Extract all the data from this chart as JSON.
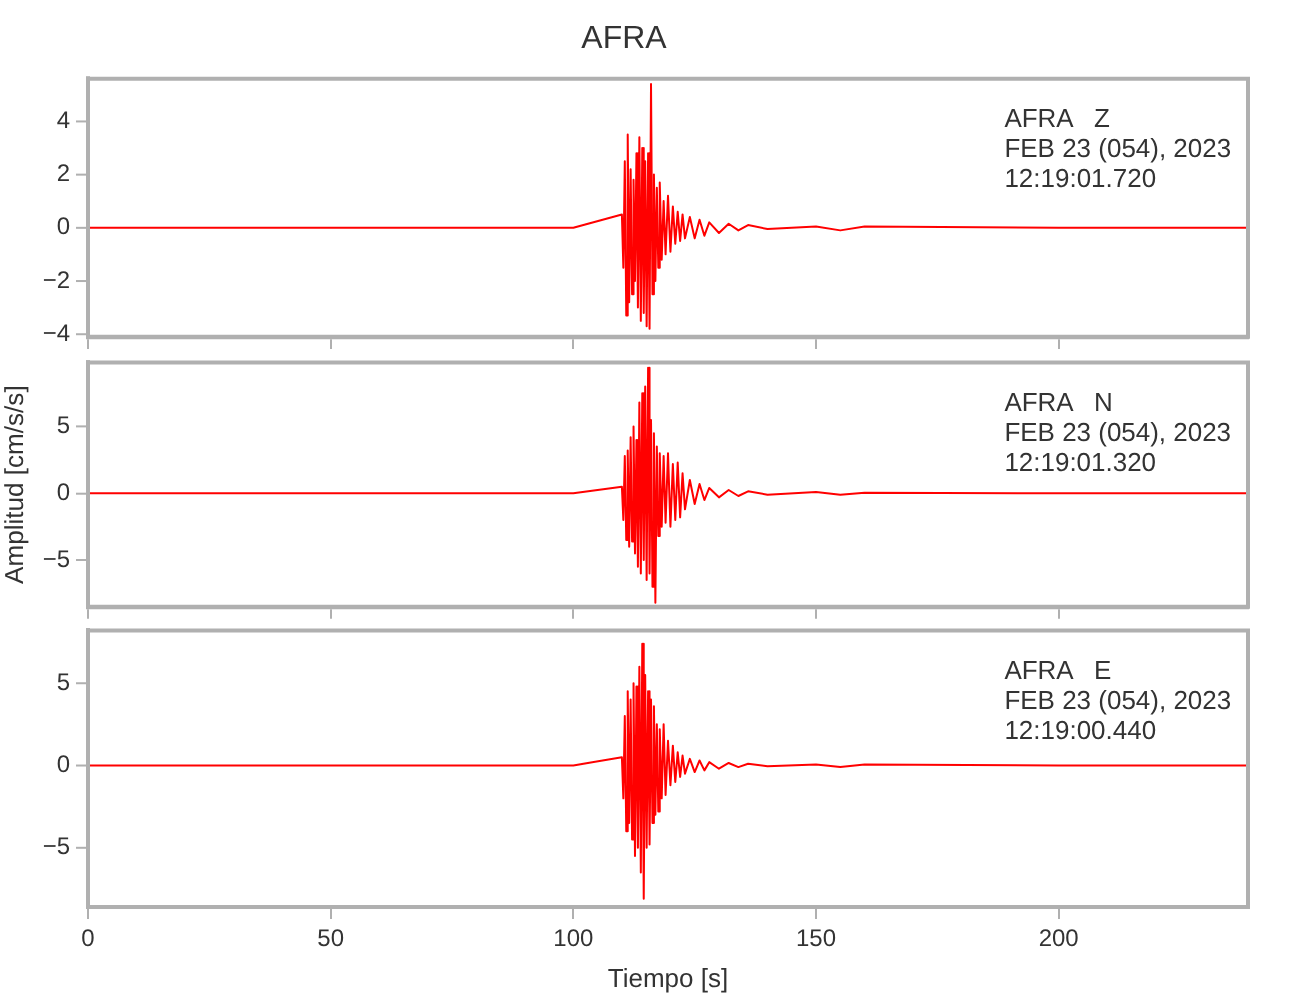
{
  "chart_data": [
    {
      "type": "line",
      "title": "AFRA",
      "annotations": [
        "AFRA   Z",
        "FEB 23 (054), 2023",
        "12:19:01.720"
      ],
      "xlim": [
        0,
        239
      ],
      "xticks": [
        0,
        50,
        100,
        150,
        200
      ],
      "ylim": [
        -4.1,
        5.6
      ],
      "yticks": [
        -4,
        -2,
        0,
        2,
        4
      ],
      "tick_labels": "y",
      "line_style": "solid",
      "series": [
        {
          "color": "#ff0000",
          "x": [
            0,
            50,
            100,
            110,
            110.3,
            110.6,
            110.9,
            111.2,
            111.5,
            111.8,
            112.1,
            112.4,
            112.7,
            113,
            113.3,
            113.6,
            113.9,
            114.2,
            114.5,
            114.8,
            115.1,
            115.4,
            115.7,
            116,
            116.3,
            116.6,
            116.9,
            117.2,
            117.5,
            117.8,
            118.2,
            118.6,
            119,
            119.5,
            120,
            120.5,
            121,
            121.5,
            122,
            122.5,
            123,
            124,
            125,
            126,
            127,
            128,
            130,
            132,
            134,
            136,
            140,
            150,
            155,
            160,
            200,
            239
          ],
          "values": [
            0,
            0,
            0,
            0.5,
            -1.5,
            2.5,
            -3.3,
            3.5,
            -2.8,
            2.2,
            -2.5,
            1.8,
            -2,
            2.8,
            -3,
            3.4,
            -3.5,
            3,
            -3.2,
            2.5,
            -3.7,
            2.8,
            -3.8,
            5.4,
            -2.5,
            2,
            -2,
            1.5,
            -1.5,
            1.7,
            -1.2,
            1,
            -1,
            1.2,
            -0.9,
            0.8,
            -0.6,
            0.6,
            -0.5,
            0.5,
            -0.4,
            0.4,
            -0.4,
            0.3,
            -0.3,
            0.2,
            -0.2,
            0.15,
            -0.1,
            0.1,
            -0.05,
            0.05,
            -0.1,
            0.05,
            0,
            0
          ]
        }
      ]
    },
    {
      "type": "line",
      "ylabel": "Amplitud [cm/s/s]",
      "annotations": [
        "AFRA   N",
        "FEB 23 (054), 2023",
        "12:19:01.320"
      ],
      "xlim": [
        0,
        239
      ],
      "xticks": [
        0,
        50,
        100,
        150,
        200
      ],
      "ylim": [
        -8.5,
        9.8
      ],
      "yticks": [
        -5,
        0,
        5
      ],
      "tick_labels": "y",
      "line_style": "solid",
      "series": [
        {
          "color": "#ff0000",
          "x": [
            0,
            50,
            100,
            110,
            110.3,
            110.6,
            110.9,
            111.2,
            111.5,
            111.8,
            112.1,
            112.4,
            112.7,
            113,
            113.3,
            113.6,
            113.9,
            114.2,
            114.5,
            114.8,
            115.1,
            115.4,
            115.7,
            116,
            116.3,
            116.6,
            116.9,
            117.2,
            117.5,
            117.8,
            118.2,
            118.6,
            119,
            119.5,
            120,
            120.5,
            121,
            121.5,
            122,
            122.5,
            123,
            124,
            125,
            126,
            127,
            128,
            130,
            132,
            134,
            136,
            140,
            150,
            155,
            160,
            200,
            239
          ],
          "values": [
            0,
            0,
            0,
            0.5,
            -2,
            2.8,
            -3.5,
            3.2,
            -4,
            4.2,
            -3.6,
            5,
            -4.5,
            4,
            -5.5,
            6.8,
            -6,
            7.5,
            -5,
            8,
            -6.5,
            9.4,
            -6,
            5.5,
            -7,
            4.5,
            -8.2,
            3.5,
            -3.2,
            3,
            -2.5,
            2.8,
            -2.2,
            3,
            -2.5,
            2.2,
            -2,
            2.3,
            -1.8,
            1.5,
            -1.2,
            1,
            -0.8,
            0.7,
            -0.5,
            0.4,
            -0.3,
            0.25,
            -0.2,
            0.15,
            -0.1,
            0.1,
            -0.1,
            0.05,
            0,
            0
          ]
        }
      ]
    },
    {
      "type": "line",
      "xlabel": "Tiempo [s]",
      "annotations": [
        "AFRA   E",
        "FEB 23 (054), 2023",
        "12:19:00.440"
      ],
      "xlim": [
        0,
        239
      ],
      "xticks": [
        0,
        50,
        100,
        150,
        200
      ],
      "ylim": [
        -8.6,
        8.2
      ],
      "yticks": [
        -5,
        0,
        5
      ],
      "line_style": "solid",
      "series": [
        {
          "color": "#ff0000",
          "x": [
            0,
            50,
            100,
            110,
            110.3,
            110.6,
            110.9,
            111.2,
            111.5,
            111.8,
            112.1,
            112.4,
            112.7,
            113,
            113.3,
            113.6,
            113.9,
            114.2,
            114.5,
            114.8,
            115.1,
            115.4,
            115.7,
            116,
            116.3,
            116.6,
            116.9,
            117.2,
            117.5,
            117.8,
            118.2,
            118.6,
            119,
            119.5,
            120,
            120.5,
            121,
            121.5,
            122,
            122.5,
            123,
            124,
            125,
            126,
            127,
            128,
            130,
            132,
            134,
            136,
            140,
            150,
            155,
            160,
            200,
            239
          ],
          "values": [
            0,
            0,
            0,
            0.5,
            -2,
            3,
            -4,
            4.5,
            -3.5,
            4,
            -4.5,
            5,
            -5.5,
            4.8,
            -5,
            6,
            -6.5,
            7.4,
            -8.1,
            5.5,
            -5,
            4.5,
            -4.8,
            4,
            -3.5,
            3.6,
            -3,
            2.5,
            -2.8,
            2.2,
            -2,
            2.5,
            -1.8,
            1.5,
            -1.2,
            1.2,
            -1,
            0.8,
            -0.7,
            0.6,
            -0.5,
            0.4,
            -0.4,
            0.3,
            -0.3,
            0.2,
            -0.2,
            0.15,
            -0.1,
            0.1,
            -0.05,
            0.05,
            -0.1,
            0.05,
            0,
            0
          ]
        }
      ]
    }
  ]
}
